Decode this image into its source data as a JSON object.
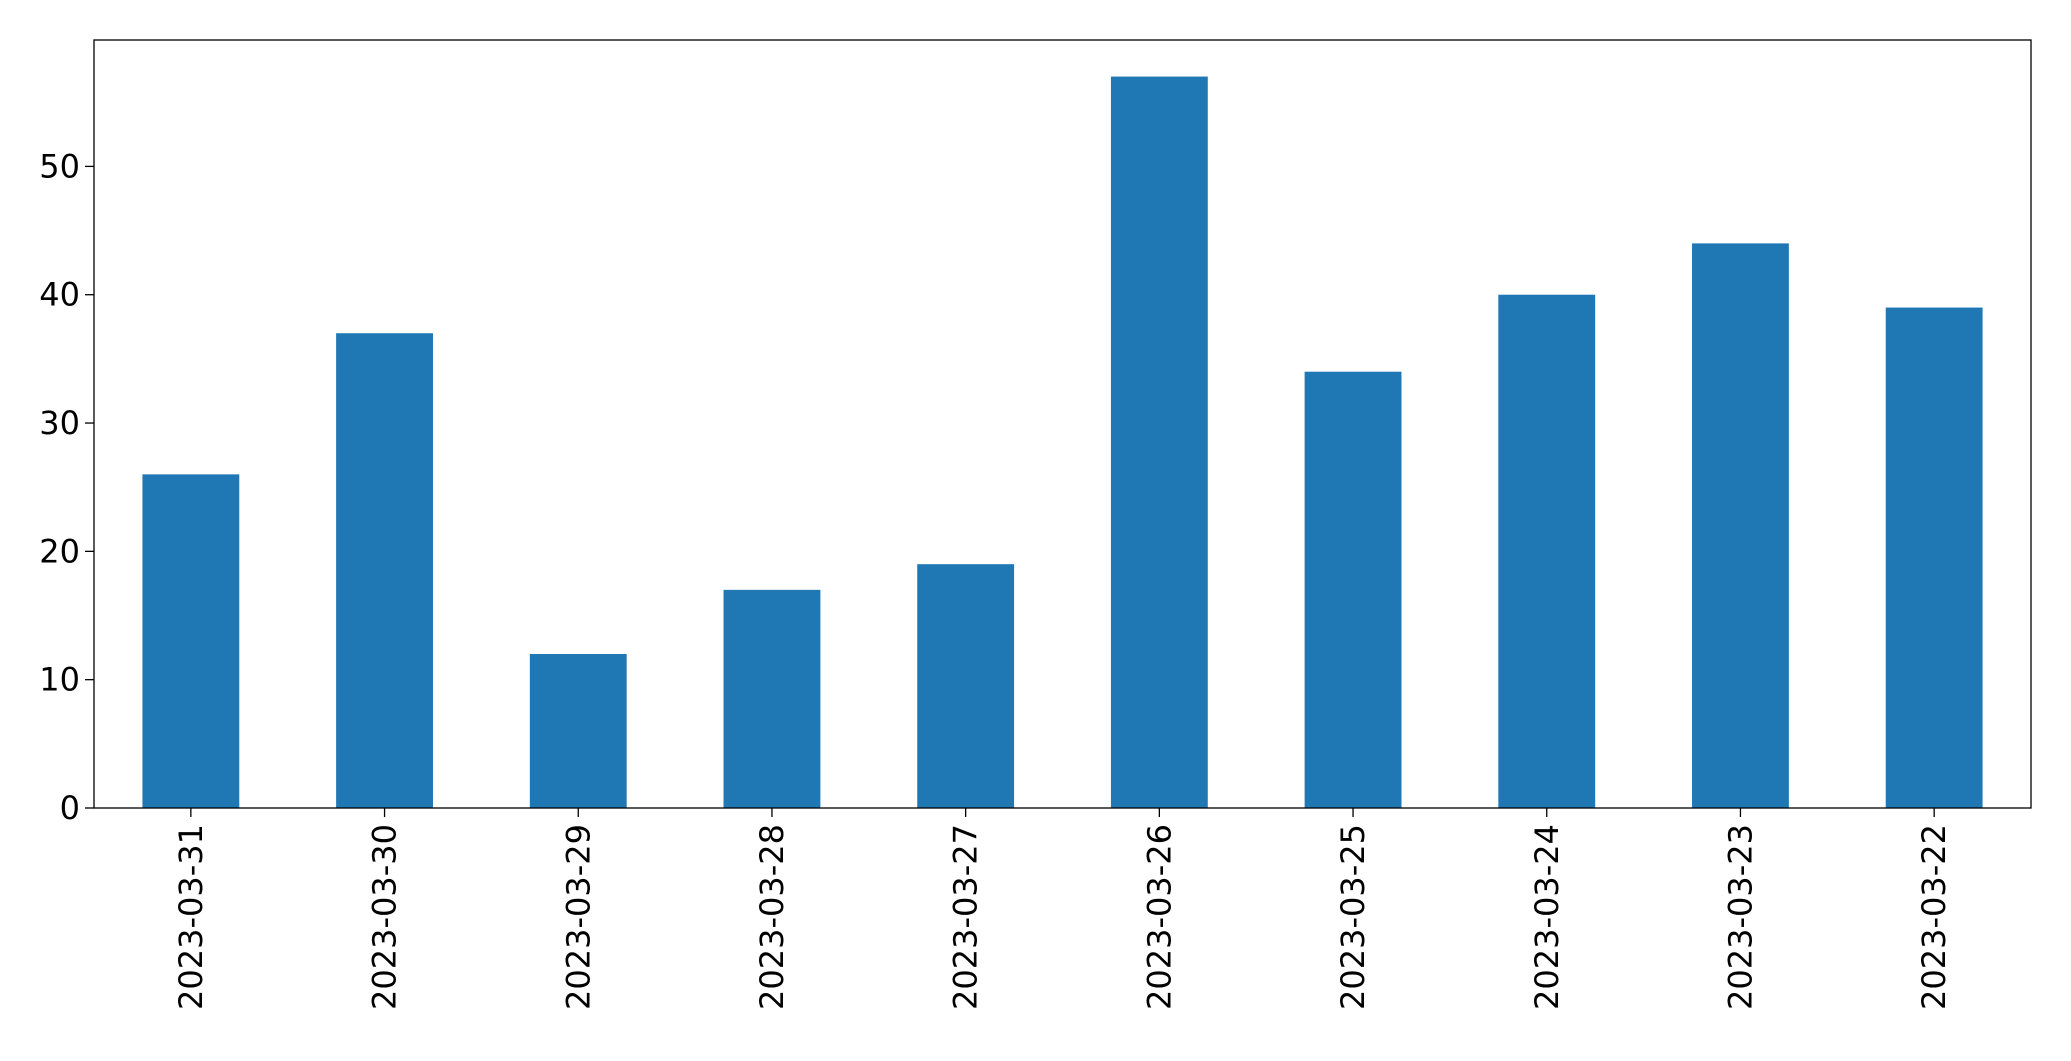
{
  "chart_data": {
    "type": "bar",
    "categories": [
      "2023-03-31",
      "2023-03-30",
      "2023-03-29",
      "2023-03-28",
      "2023-03-27",
      "2023-03-26",
      "2023-03-25",
      "2023-03-24",
      "2023-03-23",
      "2023-03-22"
    ],
    "values": [
      26,
      37,
      12,
      17,
      19,
      57,
      34,
      40,
      44,
      39
    ],
    "color": "#1f77b4",
    "ylim": [
      0,
      59.85
    ],
    "yticks": [
      0,
      10,
      20,
      30,
      40,
      50
    ],
    "grid": false
  }
}
